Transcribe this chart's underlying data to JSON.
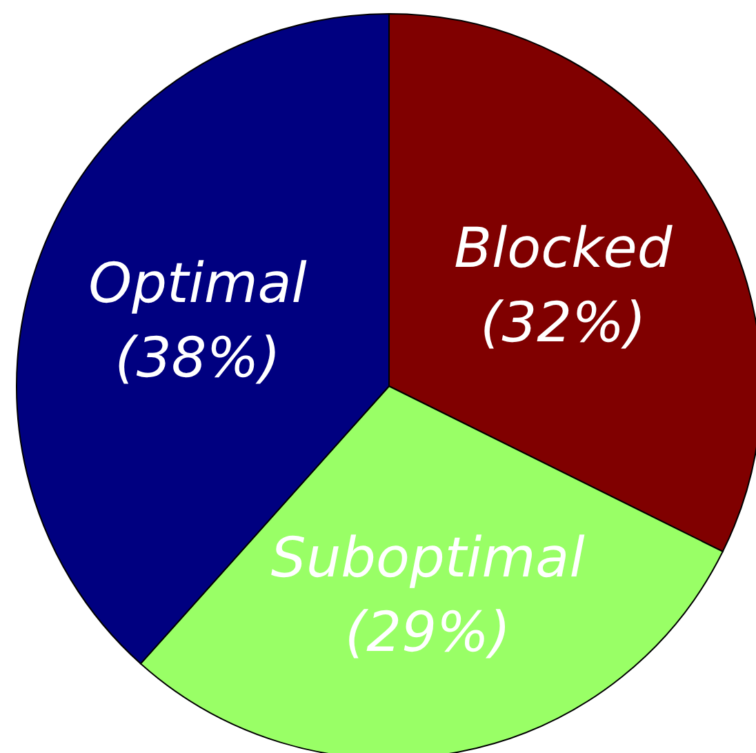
{
  "chart_data": {
    "type": "pie",
    "categories": [
      "Blocked",
      "Suboptimal",
      "Optimal"
    ],
    "values": [
      32,
      29,
      38
    ],
    "colors": [
      "#800000",
      "#99ff66",
      "#000080"
    ],
    "value_labels": [
      "(32%)",
      "(29%)",
      "(38%)"
    ]
  }
}
